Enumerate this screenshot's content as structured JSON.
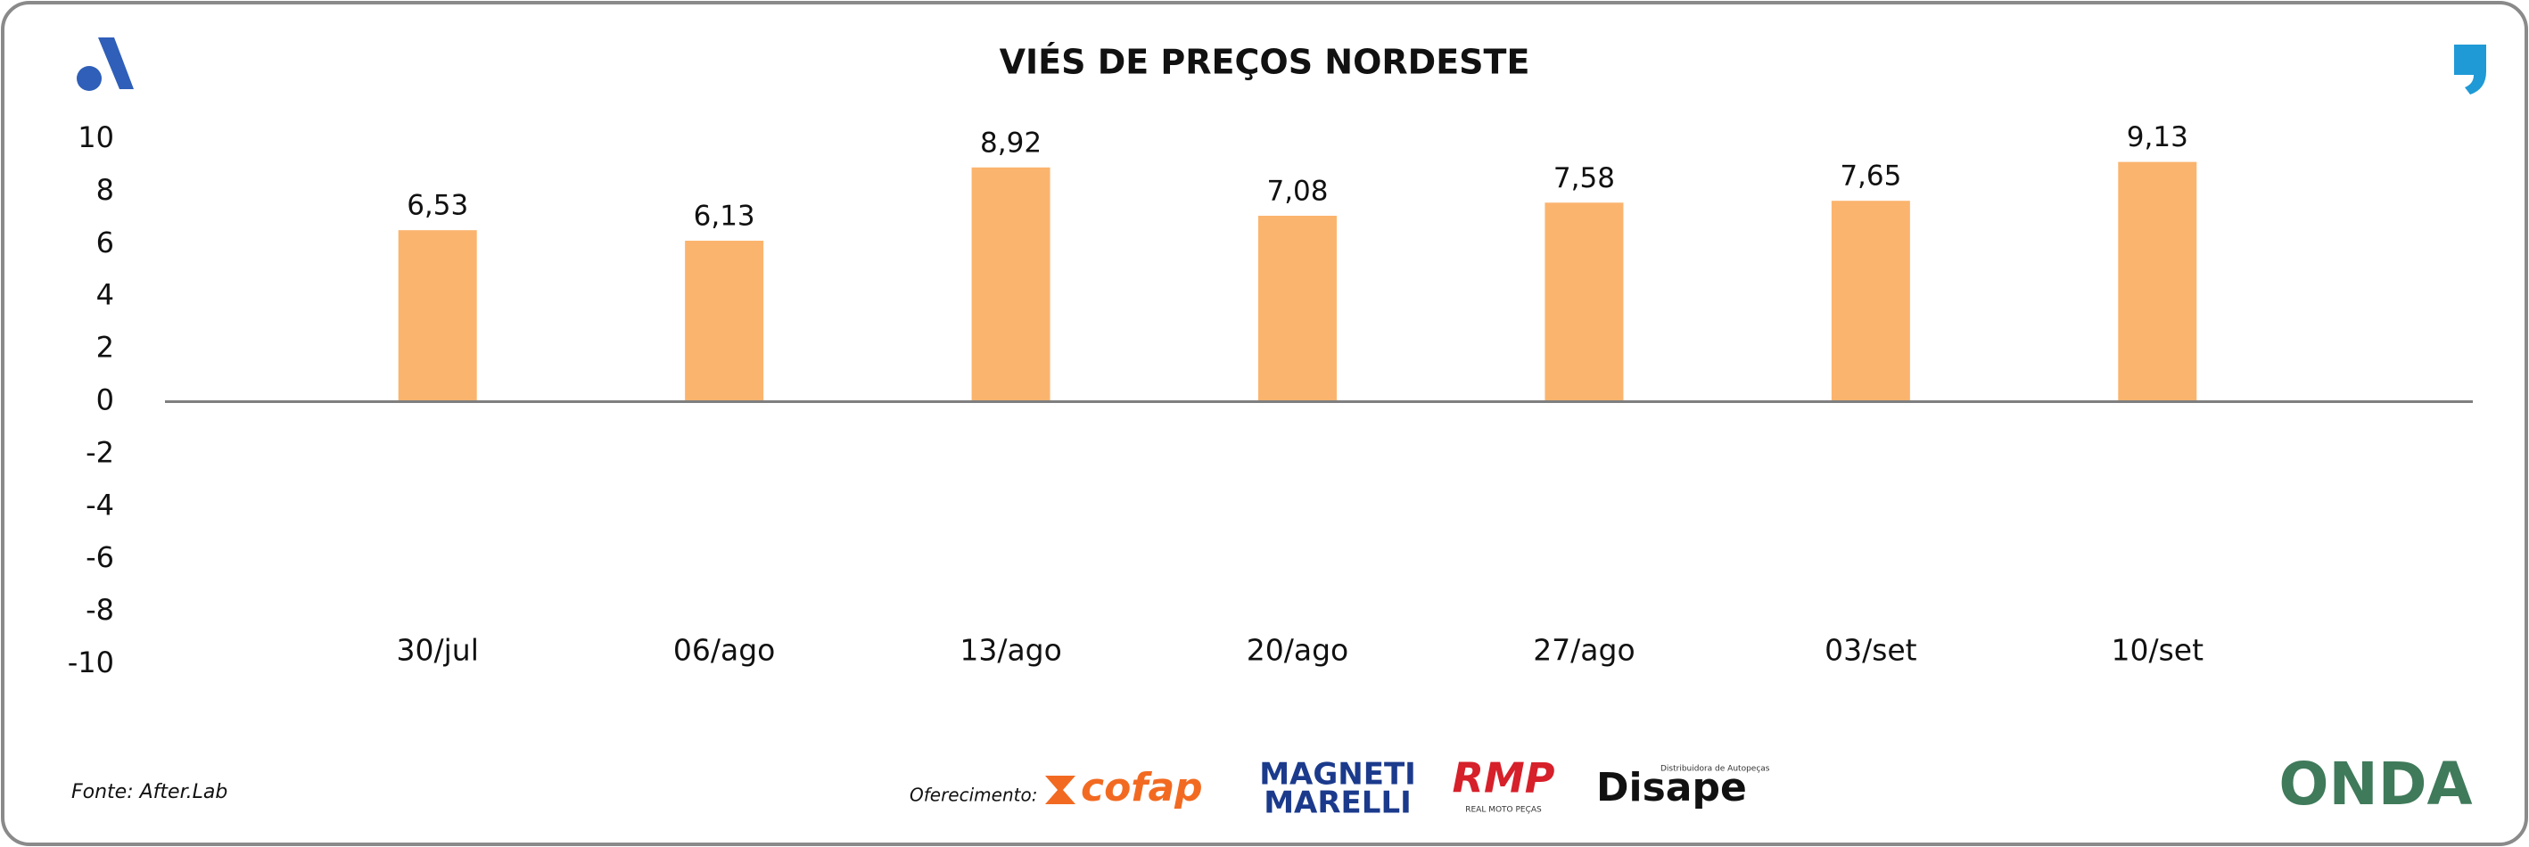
{
  "chart_data": {
    "type": "bar",
    "title": "VIÉS DE PREÇOS NORDESTE",
    "categories": [
      "30/jul",
      "06/ago",
      "13/ago",
      "20/ago",
      "27/ago",
      "03/set",
      "10/set"
    ],
    "values": [
      6.53,
      6.13,
      8.92,
      7.08,
      7.58,
      7.65,
      9.13
    ],
    "value_labels": [
      "6,53",
      "6,13",
      "8,92",
      "7,08",
      "7,58",
      "7,65",
      "9,13"
    ],
    "color": "#fbb46e",
    "ylim": [
      -10,
      10
    ],
    "yticks": [
      10,
      8,
      6,
      4,
      2,
      0,
      -2,
      -4,
      -6,
      -8,
      -10
    ],
    "grid": false
  },
  "footer": {
    "source": "Fonte: After.Lab",
    "sponsor_label": "Oferecimento:",
    "sponsors": [
      "cofap",
      "MAGNETI",
      "MARELLI",
      "RMP",
      "REAL MOTO PEÇAS",
      "Disape",
      "Distribuidora de Autopeças"
    ],
    "brand": "ONDA"
  }
}
